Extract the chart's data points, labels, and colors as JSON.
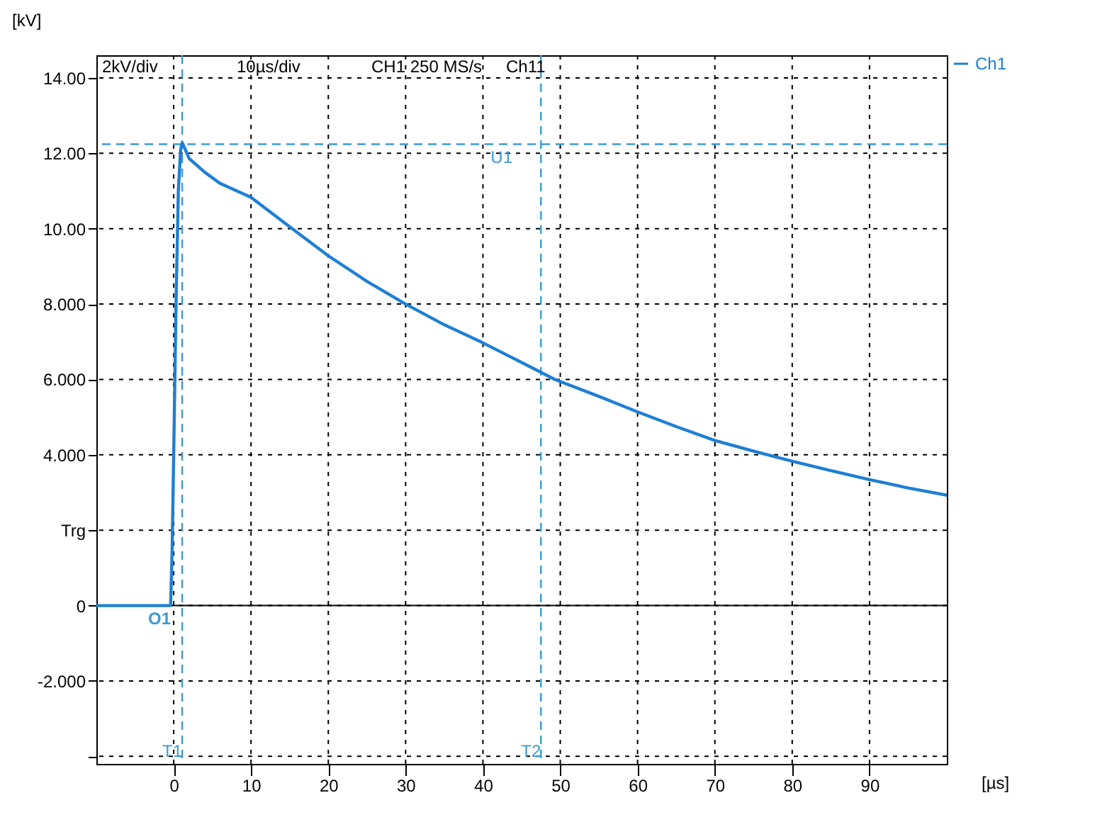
{
  "chart_data": {
    "type": "line",
    "xlabel": "[µs]",
    "ylabel": "[kV]",
    "x": [
      -10,
      -5,
      -0.4,
      -0.2,
      0,
      0.3,
      0.6,
      0.9,
      1.1,
      1.5,
      2,
      4,
      6,
      10,
      15,
      20,
      25,
      30,
      35,
      40,
      45,
      49.3,
      55,
      60,
      65,
      70,
      75,
      80,
      85,
      90,
      95,
      100
    ],
    "series": [
      {
        "name": "Ch1",
        "color": "#1f7fd4",
        "values": [
          0,
          0,
          0,
          1.5,
          4,
          8,
          11,
          12.1,
          12.28,
          12.1,
          11.86,
          11.5,
          11.2,
          10.83,
          10.05,
          9.28,
          8.6,
          8.0,
          7.45,
          6.97,
          6.45,
          6.0,
          5.55,
          5.14,
          4.75,
          4.38,
          4.1,
          3.83,
          3.58,
          3.34,
          3.12,
          2.93
        ]
      }
    ],
    "xlim": [
      -10,
      100
    ],
    "xticks": [
      0,
      10,
      20,
      30,
      40,
      50,
      60,
      70,
      80,
      90
    ],
    "ylim": [
      -4.2,
      14.6
    ],
    "yticks": [
      {
        "value": -4,
        "label": null
      },
      {
        "value": -2,
        "label": "-2.000"
      },
      0,
      {
        "value": 2,
        "label": "Trg"
      },
      {
        "value": 4,
        "label": "4.000"
      },
      {
        "value": 6,
        "label": "6.000"
      },
      {
        "value": 8,
        "label": "8.000"
      },
      {
        "value": 10,
        "label": "10.00"
      },
      {
        "value": 12,
        "label": "12.00"
      },
      {
        "value": 14,
        "label": "14.00"
      }
    ],
    "grid": true,
    "legend": "top right",
    "line_style": "solid",
    "ref_lines": [
      {
        "axis": "y",
        "value": 12.24,
        "label": "U1",
        "color": "#3a9ad9",
        "line_style": "dashed"
      },
      {
        "axis": "x",
        "value": 1.1,
        "label": "T1",
        "color": "#3a9ad9",
        "line_style": "dashed"
      },
      {
        "axis": "x",
        "value": 47.5,
        "label": "T2",
        "color": "#3a9ad9",
        "line_style": "dashed"
      }
    ],
    "annotations": [
      "2kV/div",
      "10µs/div",
      "CH1 250 MS/s",
      "Ch11",
      {
        "text": "O1",
        "x": 0,
        "y": 0
      }
    ]
  }
}
